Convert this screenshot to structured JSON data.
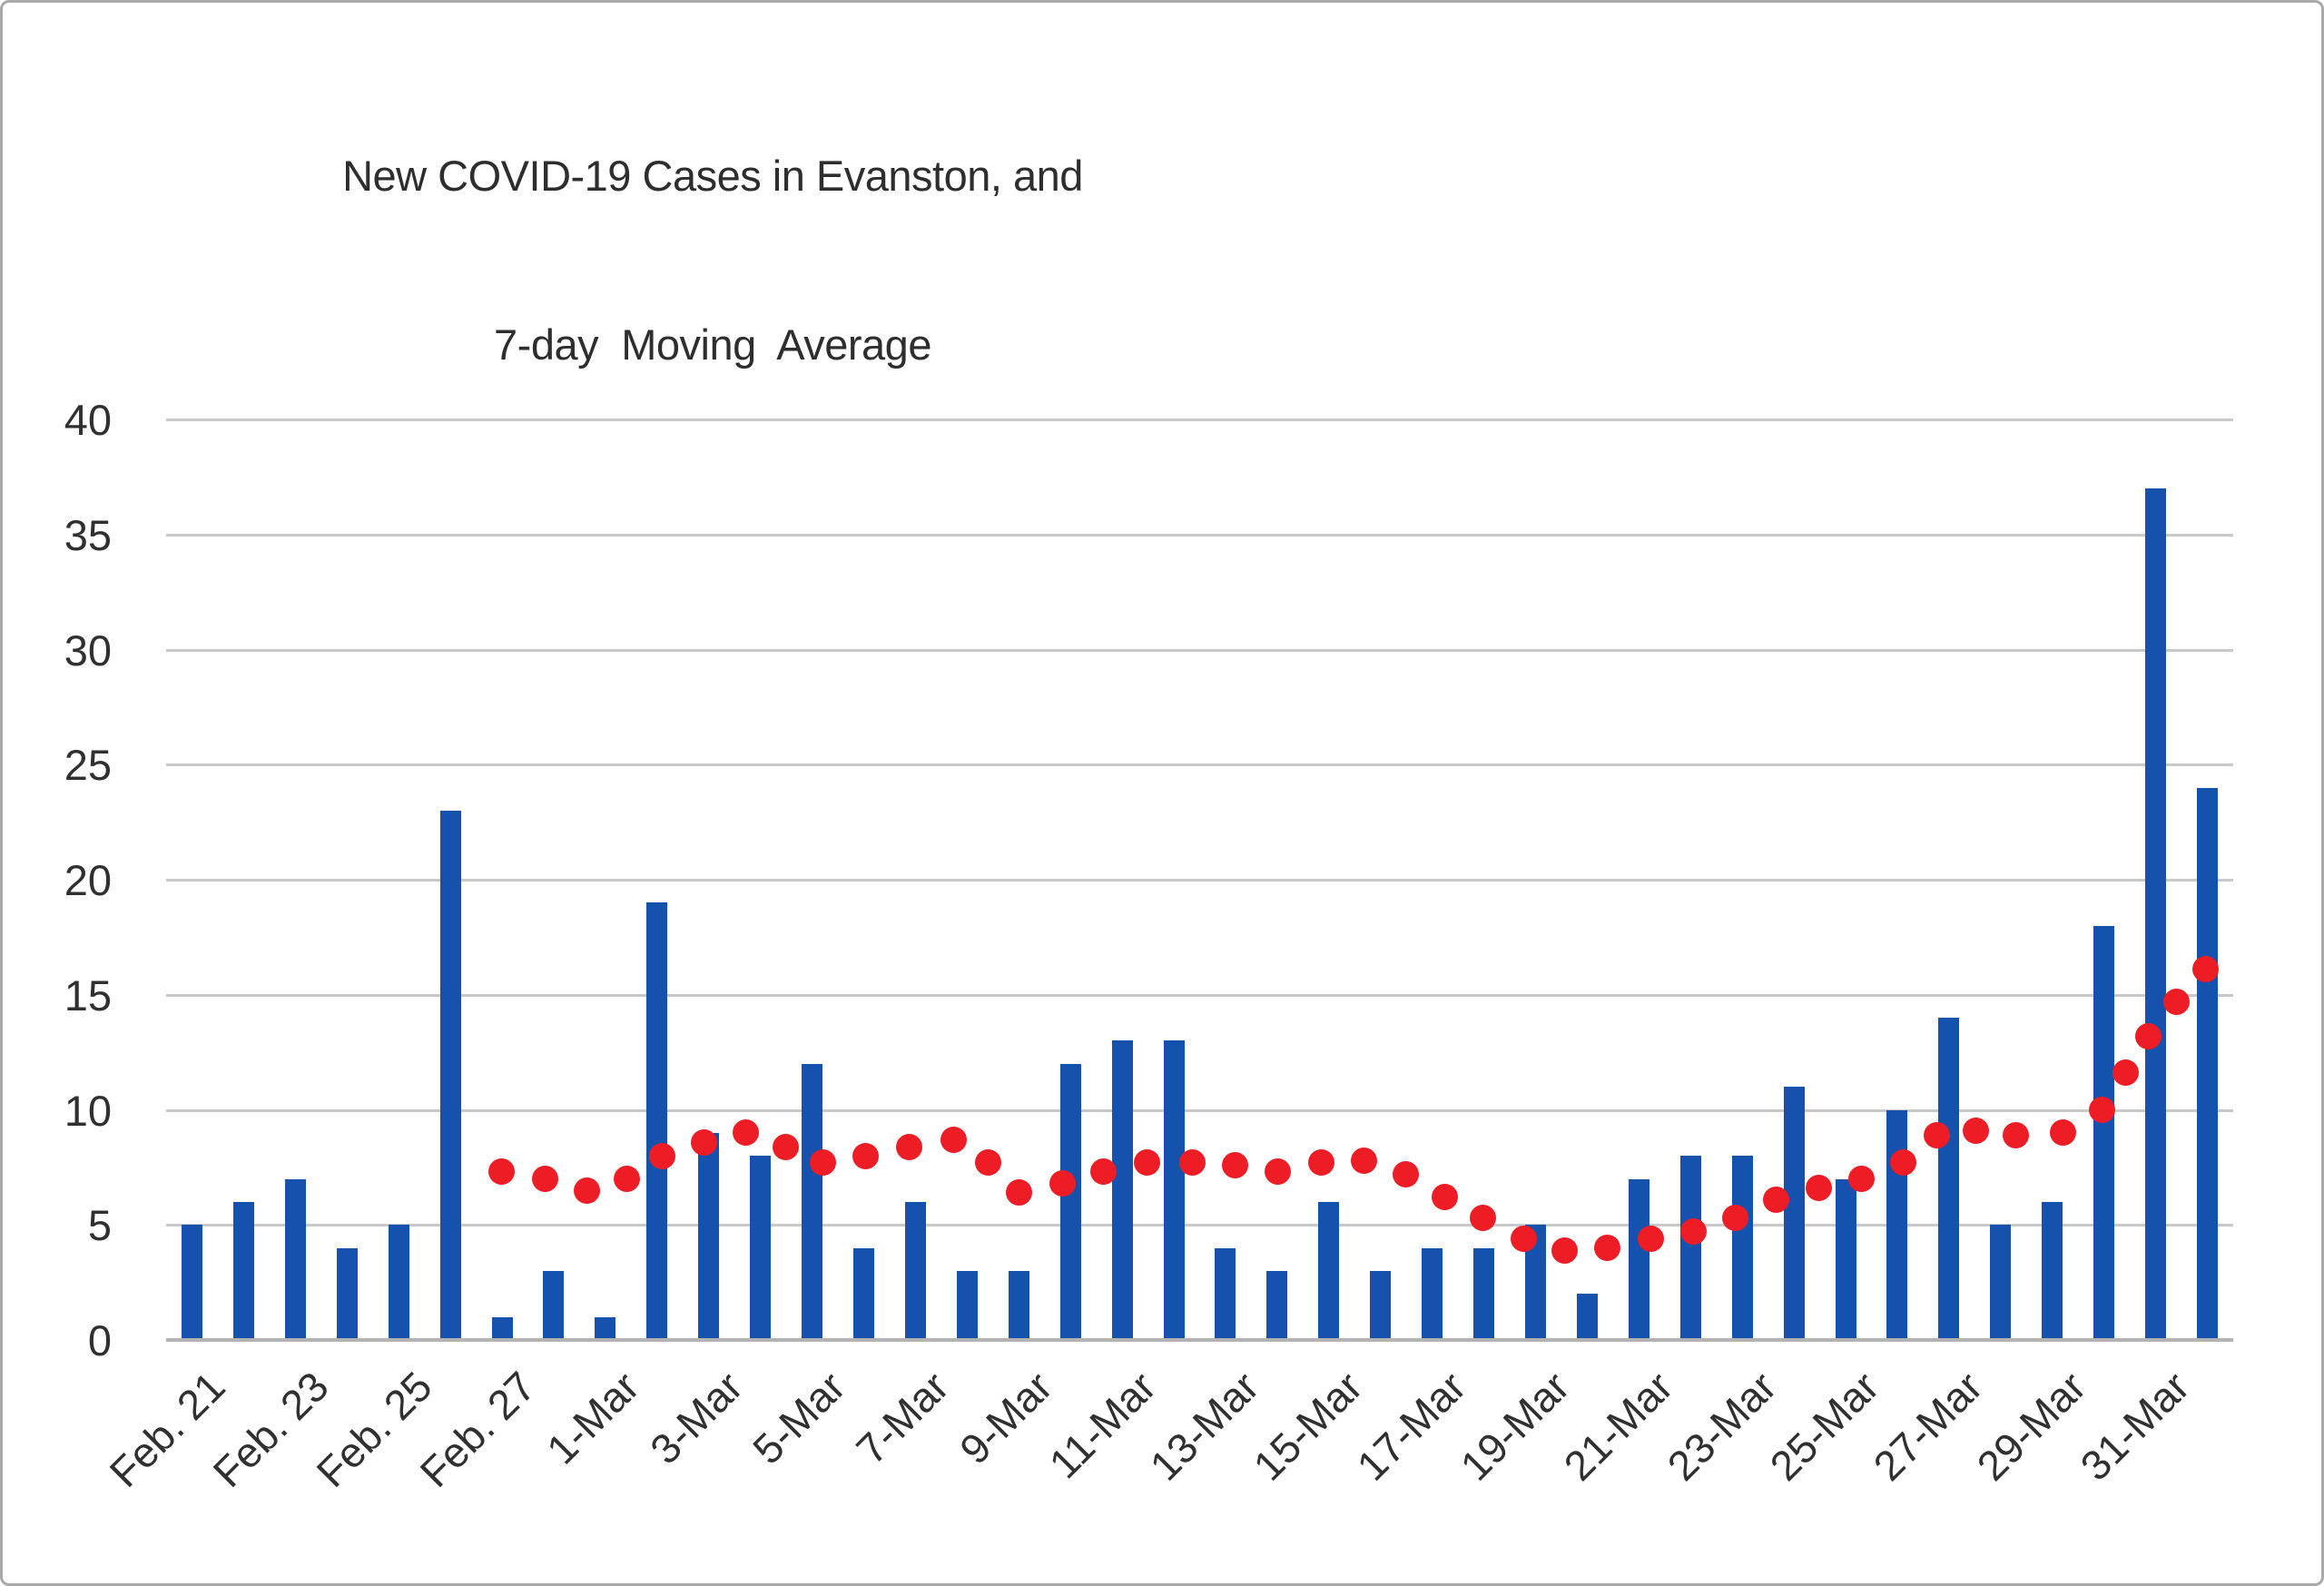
{
  "title": {
    "line1": "New COVID-19 Cases in Evanston, and",
    "line2": "7-day  Moving  Average"
  },
  "chart_data": {
    "type": "bar",
    "title": "New COVID-19 Cases in Evanston, and 7-day Moving Average",
    "xlabel": "",
    "ylabel": "",
    "ylim": [
      0,
      40
    ],
    "yticks": [
      0,
      5,
      10,
      15,
      20,
      25,
      30,
      35,
      40
    ],
    "grid": true,
    "legend_position": "none",
    "bar_color": "#1552ad",
    "dot_color": "#ee1c25",
    "gridline_color": "#c9c9c9",
    "n_bars": 40,
    "x_tick_labels": [
      "Feb. 21",
      "Feb. 23",
      "Feb. 25",
      "Feb. 27",
      "1-Mar",
      "3-Mar",
      "5-Mar",
      "7-Mar",
      "9-Mar",
      "11-Mar",
      "13-Mar",
      "15-Mar",
      "17-Mar",
      "19-Mar",
      "21-Mar",
      "23-Mar",
      "25-Mar",
      "27-Mar",
      "29-Mar",
      "31-Mar"
    ],
    "x_tick_every": 2,
    "series": [
      {
        "name": "New COVID-19 cases (bars)",
        "values": [
          5,
          6,
          7,
          4,
          5,
          23,
          1,
          3,
          1,
          19,
          9,
          8,
          12,
          4,
          6,
          3,
          3,
          12,
          13,
          13,
          4,
          3,
          6,
          3,
          4,
          4,
          5,
          2,
          7,
          8,
          8,
          11,
          7,
          10,
          14,
          5,
          6,
          18,
          37,
          24
        ]
      },
      {
        "name": "7-day moving average (red dots)",
        "marker": "circle",
        "points": [
          {
            "x": 5.99,
            "v": 7.3
          },
          {
            "x": 6.83,
            "v": 7.0
          },
          {
            "x": 7.65,
            "v": 6.5
          },
          {
            "x": 8.41,
            "v": 7.0
          },
          {
            "x": 9.1,
            "v": 8.0
          },
          {
            "x": 9.9,
            "v": 8.6
          },
          {
            "x": 10.71,
            "v": 9.0
          },
          {
            "x": 11.49,
            "v": 8.4
          },
          {
            "x": 12.21,
            "v": 7.7
          },
          {
            "x": 13.03,
            "v": 8.0
          },
          {
            "x": 13.88,
            "v": 8.4
          },
          {
            "x": 14.74,
            "v": 8.7
          },
          {
            "x": 15.41,
            "v": 7.7
          },
          {
            "x": 16.0,
            "v": 6.4
          },
          {
            "x": 16.85,
            "v": 6.8
          },
          {
            "x": 17.64,
            "v": 7.3
          },
          {
            "x": 18.48,
            "v": 7.7
          },
          {
            "x": 19.36,
            "v": 7.7
          },
          {
            "x": 20.19,
            "v": 7.6
          },
          {
            "x": 21.01,
            "v": 7.3
          },
          {
            "x": 21.85,
            "v": 7.7
          },
          {
            "x": 22.68,
            "v": 7.8
          },
          {
            "x": 23.49,
            "v": 7.2
          },
          {
            "x": 24.24,
            "v": 6.2
          },
          {
            "x": 24.98,
            "v": 5.3
          },
          {
            "x": 25.77,
            "v": 4.4
          },
          {
            "x": 26.56,
            "v": 3.9
          },
          {
            "x": 27.39,
            "v": 4.0
          },
          {
            "x": 28.23,
            "v": 4.4
          },
          {
            "x": 29.06,
            "v": 4.7
          },
          {
            "x": 29.87,
            "v": 5.3
          },
          {
            "x": 30.66,
            "v": 6.1
          },
          {
            "x": 31.48,
            "v": 6.6
          },
          {
            "x": 32.31,
            "v": 7.0
          },
          {
            "x": 33.12,
            "v": 7.7
          },
          {
            "x": 33.77,
            "v": 8.9
          },
          {
            "x": 34.52,
            "v": 9.1
          },
          {
            "x": 35.3,
            "v": 8.9
          },
          {
            "x": 36.21,
            "v": 9.0
          },
          {
            "x": 36.96,
            "v": 10.0
          },
          {
            "x": 37.42,
            "v": 11.6
          },
          {
            "x": 37.86,
            "v": 13.2
          },
          {
            "x": 38.4,
            "v": 14.7
          },
          {
            "x": 38.97,
            "v": 16.1
          }
        ]
      }
    ]
  }
}
